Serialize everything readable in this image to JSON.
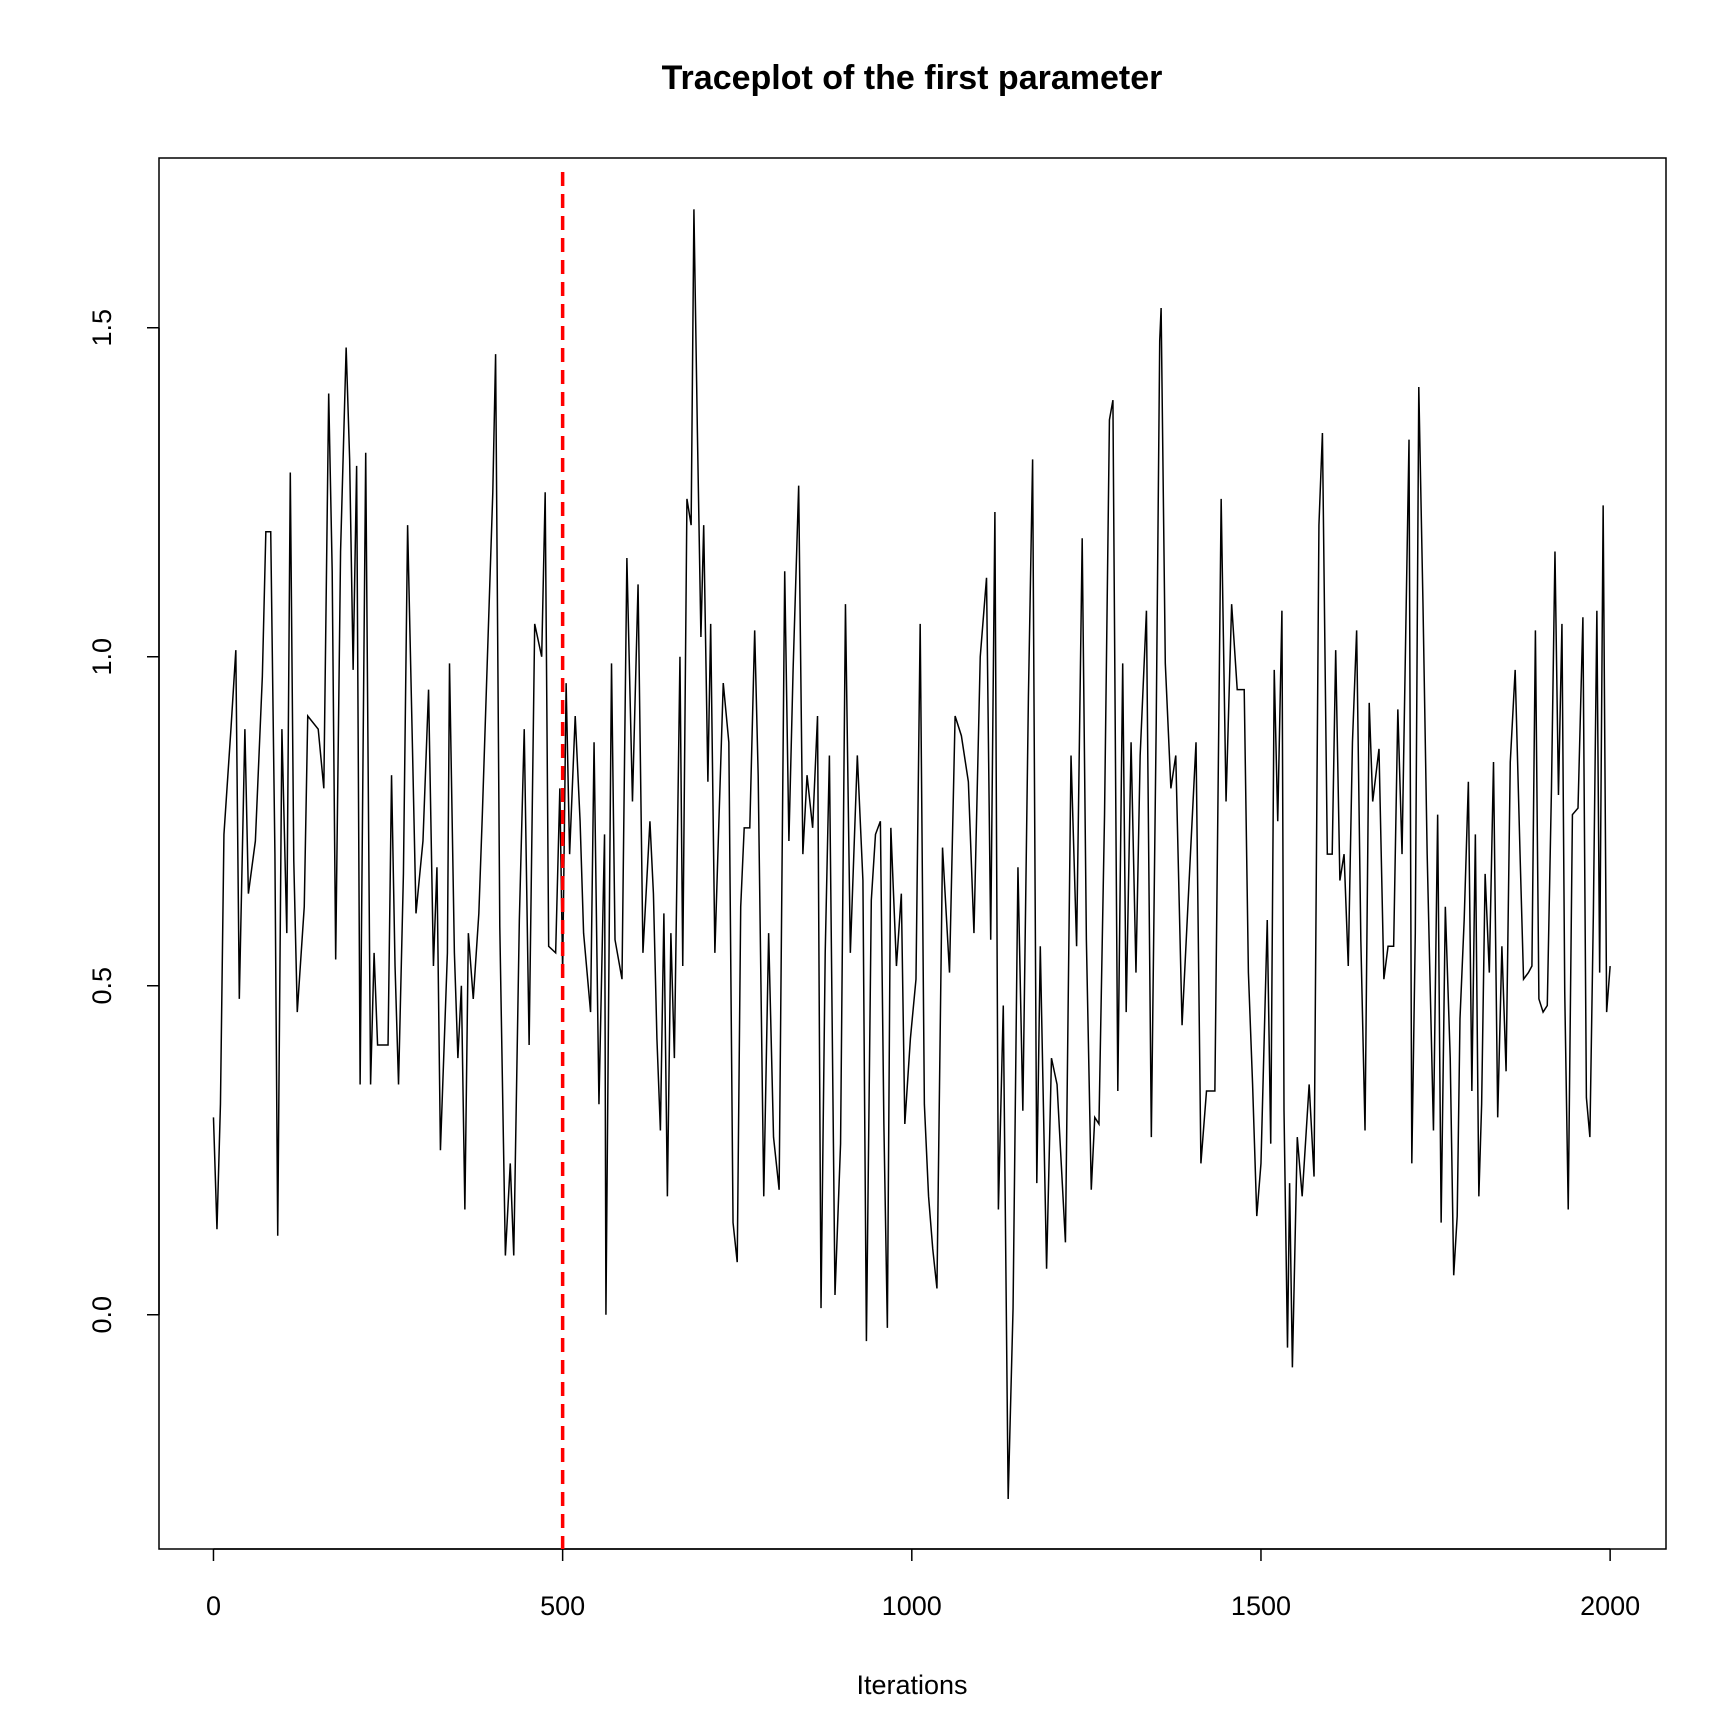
{
  "chart_data": {
    "type": "line",
    "title": "Traceplot of the first parameter",
    "x_label": "Iterations",
    "color": "#000000",
    "vline": 500,
    "vline_color": "#ff0000",
    "vline_dash": true,
    "xlim": [
      -78,
      2080
    ],
    "ylim": [
      -0.356,
      1.758
    ],
    "xticks": [
      0,
      500,
      1000,
      1500,
      2000
    ],
    "yticks": [
      {
        "value": 0,
        "label": "0.0"
      },
      0.5,
      {
        "value": 1,
        "label": "1.0"
      },
      1.5
    ],
    "x": [
      0,
      5,
      10,
      15,
      25,
      32,
      37,
      45,
      50,
      60,
      70,
      75,
      82,
      88,
      92,
      98,
      105,
      110,
      115,
      120,
      130,
      135,
      150,
      158,
      165,
      170,
      175,
      182,
      190,
      195,
      200,
      205,
      210,
      218,
      225,
      230,
      235,
      250,
      255,
      260,
      265,
      272,
      278,
      285,
      290,
      300,
      308,
      315,
      320,
      325,
      335,
      338,
      345,
      350,
      355,
      360,
      365,
      372,
      380,
      385,
      392,
      400,
      404,
      410,
      418,
      425,
      430,
      438,
      445,
      452,
      460,
      470,
      475,
      480,
      490,
      496,
      500,
      505,
      510,
      518,
      525,
      530,
      540,
      545,
      552,
      560,
      562,
      570,
      575,
      585,
      592,
      600,
      608,
      615,
      625,
      630,
      635,
      640,
      645,
      650,
      655,
      660,
      668,
      672,
      678,
      684,
      688,
      693,
      698,
      702,
      708,
      712,
      718,
      722,
      730,
      738,
      744,
      750,
      755,
      760,
      768,
      775,
      780,
      788,
      795,
      802,
      810,
      818,
      824,
      830,
      838,
      844,
      850,
      858,
      865,
      870,
      876,
      882,
      890,
      898,
      905,
      912,
      922,
      930,
      935,
      942,
      948,
      955,
      960,
      965,
      970,
      978,
      985,
      990,
      998,
      1006,
      1012,
      1018,
      1024,
      1030,
      1036,
      1044,
      1054,
      1062,
      1071,
      1081,
      1089,
      1098,
      1107,
      1113,
      1119,
      1124,
      1131,
      1138,
      1145,
      1152,
      1159,
      1167,
      1173,
      1179,
      1184,
      1193,
      1200,
      1208,
      1220,
      1228,
      1236,
      1244,
      1250,
      1257,
      1262,
      1268,
      1276,
      1283,
      1288,
      1295,
      1302,
      1307,
      1314,
      1321,
      1327,
      1336,
      1343,
      1350,
      1355,
      1357,
      1363,
      1371,
      1378,
      1387,
      1399,
      1407,
      1414,
      1422,
      1434,
      1443,
      1450,
      1458,
      1466,
      1476,
      1482,
      1488,
      1494,
      1500,
      1509,
      1514,
      1519,
      1524,
      1530,
      1533,
      1538,
      1541,
      1545,
      1552,
      1559,
      1569,
      1576,
      1583,
      1588,
      1595,
      1602,
      1607,
      1613,
      1619,
      1625,
      1631,
      1637,
      1643,
      1649,
      1655,
      1660,
      1669,
      1676,
      1682,
      1690,
      1696,
      1702,
      1708,
      1712,
      1716,
      1721,
      1726,
      1732,
      1738,
      1747,
      1753,
      1758,
      1764,
      1771,
      1776,
      1781,
      1785,
      1791,
      1797,
      1802,
      1807,
      1812,
      1816,
      1821,
      1827,
      1833,
      1839,
      1845,
      1851,
      1857,
      1864,
      1871,
      1876,
      1883,
      1888,
      1893,
      1898,
      1904,
      1910,
      1916,
      1921,
      1926,
      1931,
      1935,
      1940,
      1946,
      1954,
      1961,
      1966,
      1971,
      1976,
      1981,
      1985,
      1990,
      1995,
      2000
    ],
    "values": [
      0.3,
      0.13,
      0.32,
      0.73,
      0.89,
      1.01,
      0.48,
      0.89,
      0.64,
      0.72,
      0.97,
      1.19,
      1.19,
      0.7,
      0.12,
      0.89,
      0.58,
      1.28,
      0.69,
      0.46,
      0.62,
      0.91,
      0.89,
      0.8,
      1.4,
      1.13,
      0.54,
      1.16,
      1.47,
      1.3,
      0.98,
      1.29,
      0.35,
      1.31,
      0.35,
      0.55,
      0.41,
      0.41,
      0.82,
      0.53,
      0.35,
      0.67,
      1.2,
      0.86,
      0.61,
      0.72,
      0.95,
      0.53,
      0.68,
      0.25,
      0.55,
      0.99,
      0.55,
      0.39,
      0.5,
      0.16,
      0.58,
      0.48,
      0.61,
      0.76,
      0.99,
      1.25,
      1.46,
      0.59,
      0.09,
      0.23,
      0.09,
      0.6,
      0.89,
      0.41,
      1.05,
      1.0,
      1.25,
      0.56,
      0.55,
      0.8,
      0.52,
      0.96,
      0.7,
      0.91,
      0.75,
      0.58,
      0.46,
      0.87,
      0.32,
      0.73,
      0.0,
      0.99,
      0.57,
      0.51,
      1.15,
      0.78,
      1.11,
      0.55,
      0.75,
      0.64,
      0.42,
      0.28,
      0.61,
      0.18,
      0.58,
      0.39,
      1.0,
      0.53,
      1.24,
      1.2,
      1.68,
      1.34,
      1.03,
      1.2,
      0.81,
      1.05,
      0.55,
      0.69,
      0.96,
      0.87,
      0.14,
      0.08,
      0.62,
      0.74,
      0.74,
      1.04,
      0.82,
      0.18,
      0.58,
      0.27,
      0.19,
      1.13,
      0.72,
      0.98,
      1.26,
      0.7,
      0.82,
      0.74,
      0.91,
      0.01,
      0.55,
      0.85,
      0.03,
      0.26,
      1.08,
      0.55,
      0.85,
      0.66,
      -0.04,
      0.63,
      0.73,
      0.75,
      0.29,
      -0.02,
      0.74,
      0.53,
      0.64,
      0.29,
      0.42,
      0.51,
      1.05,
      0.32,
      0.18,
      0.1,
      0.04,
      0.71,
      0.52,
      0.91,
      0.88,
      0.81,
      0.58,
      1.0,
      1.12,
      0.57,
      1.22,
      0.16,
      0.47,
      -0.28,
      0.01,
      0.68,
      0.31,
      0.94,
      1.3,
      0.2,
      0.56,
      0.07,
      0.39,
      0.35,
      0.11,
      0.85,
      0.56,
      1.18,
      0.57,
      0.19,
      0.3,
      0.29,
      0.76,
      1.36,
      1.39,
      0.34,
      0.99,
      0.46,
      0.87,
      0.52,
      0.85,
      1.07,
      0.27,
      0.9,
      1.48,
      1.53,
      0.99,
      0.8,
      0.85,
      0.44,
      0.7,
      0.87,
      0.23,
      0.34,
      0.34,
      1.24,
      0.78,
      1.08,
      0.95,
      0.95,
      0.52,
      0.35,
      0.15,
      0.23,
      0.6,
      0.26,
      0.98,
      0.75,
      1.07,
      0.31,
      -0.05,
      0.2,
      -0.08,
      0.27,
      0.18,
      0.35,
      0.21,
      1.2,
      1.34,
      0.7,
      0.7,
      1.01,
      0.66,
      0.7,
      0.53,
      0.87,
      1.04,
      0.57,
      0.28,
      0.93,
      0.78,
      0.86,
      0.51,
      0.56,
      0.56,
      0.92,
      0.7,
      1.08,
      1.33,
      0.23,
      0.58,
      1.41,
      1.08,
      0.7,
      0.28,
      0.76,
      0.14,
      0.62,
      0.39,
      0.06,
      0.15,
      0.45,
      0.6,
      0.81,
      0.34,
      0.73,
      0.18,
      0.32,
      0.67,
      0.52,
      0.84,
      0.3,
      0.56,
      0.37,
      0.84,
      0.98,
      0.7,
      0.51,
      0.52,
      0.53,
      1.04,
      0.48,
      0.46,
      0.47,
      0.8,
      1.16,
      0.79,
      1.05,
      0.49,
      0.16,
      0.76,
      0.77,
      1.06,
      0.33,
      0.27,
      0.61,
      1.07,
      0.52,
      1.23,
      0.46,
      0.53
    ]
  }
}
